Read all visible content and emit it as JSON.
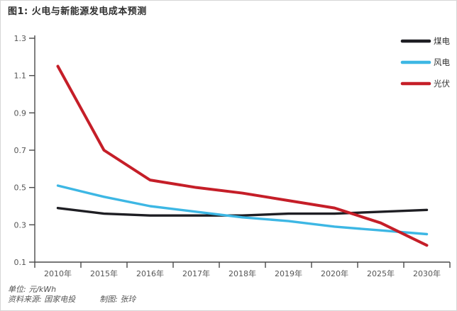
{
  "figure": {
    "title": "图1: 火电与新能源发电成本预测",
    "footer": {
      "unit_label": "单位: 元/kWh",
      "source_label": "资料来源: 国家电投",
      "credit_label": "制图: 张玲"
    }
  },
  "chart_data": {
    "type": "line",
    "title": "图1: 火电与新能源发电成本预测",
    "unit": "元/kWh",
    "categories": [
      "2010年",
      "2015年",
      "2016年",
      "2017年",
      "2018年",
      "2019年",
      "2020年",
      "2025年",
      "2030年"
    ],
    "series": [
      {
        "name": "煤电",
        "color": "#1e1e23",
        "values": [
          0.39,
          0.36,
          0.35,
          0.35,
          0.35,
          0.36,
          0.36,
          0.37,
          0.38
        ]
      },
      {
        "name": "风电",
        "color": "#3db7e4",
        "values": [
          0.51,
          0.45,
          0.4,
          0.37,
          0.34,
          0.32,
          0.29,
          0.27,
          0.25
        ]
      },
      {
        "name": "光伏",
        "color": "#c51e28",
        "values": [
          1.15,
          0.7,
          0.54,
          0.5,
          0.47,
          0.43,
          0.39,
          0.31,
          0.19
        ]
      }
    ],
    "ylim": [
      0.1,
      1.3
    ],
    "yticks": [
      0.1,
      0.3,
      0.5,
      0.7,
      0.9,
      1.1,
      1.3
    ],
    "xlabel": "",
    "ylabel": "",
    "grid": false,
    "legend_position": "top-right",
    "axis_color": "#4a4a4a",
    "tick_label_color": "#555555"
  }
}
